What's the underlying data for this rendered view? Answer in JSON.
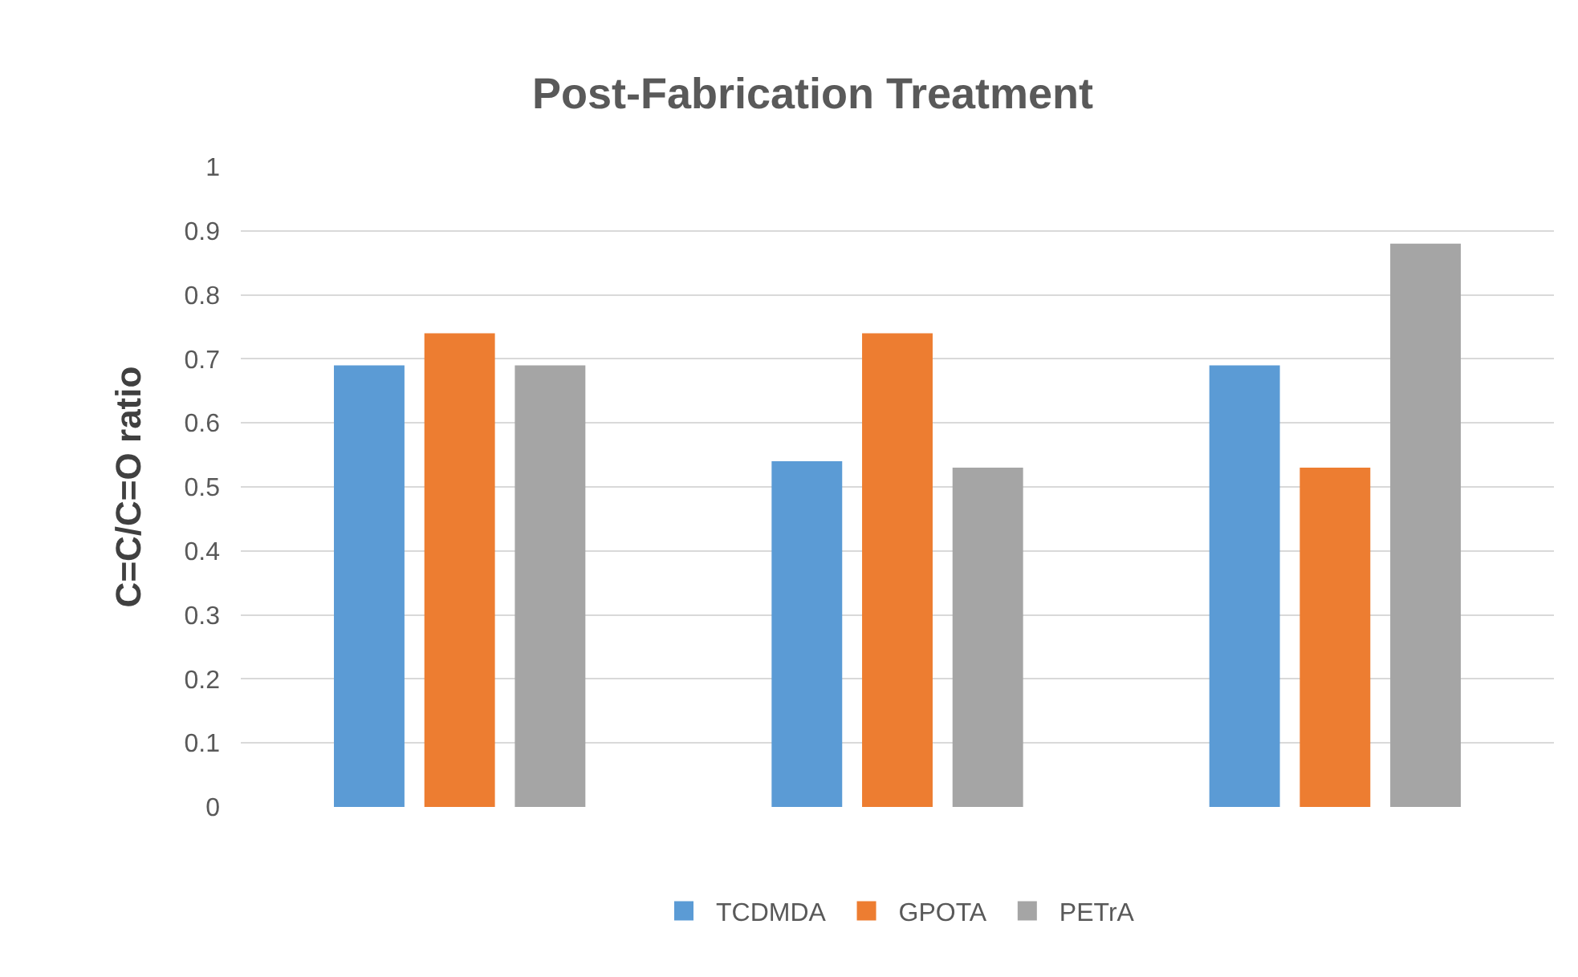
{
  "chart_data": {
    "type": "bar",
    "title": "Post-Fabrication Treatment",
    "ylabel": "C=C/C=O ratio",
    "categories": [
      null,
      null,
      null
    ],
    "series": [
      {
        "name": "TCDMDA",
        "color": "#5b9bd5",
        "values": [
          0.69,
          0.54,
          0.69
        ]
      },
      {
        "name": "GPOTA",
        "color": "#ed7d31",
        "values": [
          0.74,
          0.74,
          0.53
        ]
      },
      {
        "name": "PETrA",
        "color": "#a5a5a5",
        "values": [
          0.69,
          0.53,
          0.88
        ]
      }
    ],
    "ylim": [
      0,
      1
    ],
    "yticks": [
      0,
      0.1,
      0.2,
      0.3,
      0.4,
      0.5,
      0.6,
      0.7,
      0.8,
      0.9,
      1
    ],
    "grid": "y",
    "legend": "bottom",
    "tick_labels": "y"
  }
}
